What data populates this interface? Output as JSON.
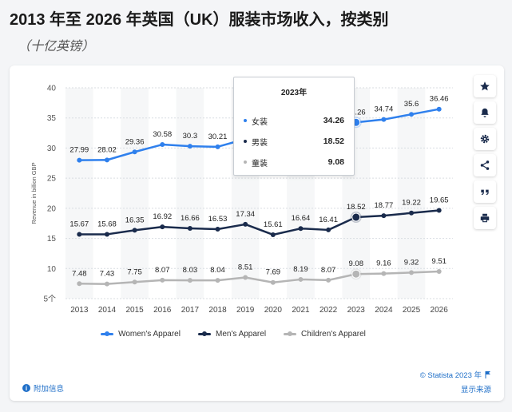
{
  "title": "2013 年至 2026 年英国（UK）服装市场收入，按类别",
  "subtitle": "（十亿英镑）",
  "toolbar": {
    "icons": [
      "star-icon",
      "bell-icon",
      "gear-icon",
      "share-icon",
      "quote-icon",
      "print-icon"
    ]
  },
  "tooltip": {
    "title": "2023年",
    "rows": [
      {
        "name": "女装",
        "value": "34.26",
        "color": "#2f80ed"
      },
      {
        "name": "男装",
        "value": "18.52",
        "color": "#1a2b4c"
      },
      {
        "name": "童装",
        "value": "9.08",
        "color": "#b5b5b5"
      }
    ]
  },
  "footer": {
    "copyright": "© Statista 2023 年",
    "additional_info": "附加信息",
    "show_source": "显示来源"
  },
  "chart_data": {
    "type": "line",
    "ylabel": "Revenue in billion GBP",
    "xlabel": "",
    "ylim": [
      5,
      40
    ],
    "yticks": [
      "5个",
      "10",
      "15",
      "20",
      "25",
      "30",
      "35",
      "40"
    ],
    "grid": true,
    "legend_position": "bottom",
    "x": [
      "2013",
      "2014",
      "2015",
      "2016",
      "2017",
      "2018",
      "2019",
      "2020",
      "2021",
      "2022",
      "2023",
      "2024",
      "2025",
      "2026"
    ],
    "highlight": "2023",
    "series": [
      {
        "name": "Women's Apparel",
        "color": "#2f80ed",
        "values": [
          27.99,
          28.02,
          29.36,
          30.58,
          30.3,
          30.21,
          31.5,
          29.5,
          31.5,
          31.8,
          34.26,
          34.74,
          35.6,
          36.46
        ],
        "labels": [
          "27.99",
          "28.02",
          "29.36",
          "30.58",
          "30.3",
          "30.21",
          "",
          "",
          "",
          "",
          "34.26",
          "34.74",
          "35.6",
          "36.46"
        ]
      },
      {
        "name": "Men's Apparel",
        "color": "#1a2b4c",
        "values": [
          15.67,
          15.68,
          16.35,
          16.92,
          16.66,
          16.53,
          17.34,
          15.61,
          16.64,
          16.41,
          18.52,
          18.77,
          19.22,
          19.65
        ],
        "labels": [
          "15.67",
          "15.68",
          "16.35",
          "16.92",
          "16.66",
          "16.53",
          "17.34",
          "15.61",
          "16.64",
          "16.41",
          "18.52",
          "18.77",
          "19.22",
          "19.65"
        ]
      },
      {
        "name": "Children's Apparel",
        "color": "#b5b5b5",
        "values": [
          7.48,
          7.43,
          7.75,
          8.07,
          8.03,
          8.04,
          8.51,
          7.69,
          8.19,
          8.07,
          9.08,
          9.16,
          9.32,
          9.51
        ],
        "labels": [
          "7.48",
          "7.43",
          "7.75",
          "8.07",
          "8.03",
          "8.04",
          "8.51",
          "7.69",
          "8.19",
          "8.07",
          "9.08",
          "9.16",
          "9.32",
          "9.51"
        ]
      }
    ]
  }
}
